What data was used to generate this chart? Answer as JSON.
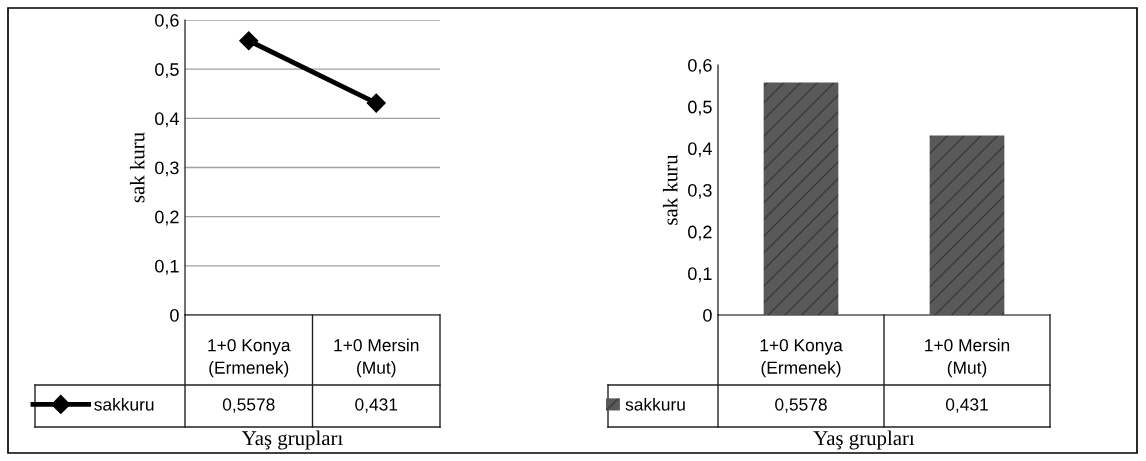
{
  "chart_data": [
    {
      "type": "line",
      "ylabel": "sak kuru",
      "xlabel": "Yaş grupları",
      "categories": [
        "1+0 Konya (Ermenek)",
        "1+0 Mersin (Mut)"
      ],
      "series": [
        {
          "name": "sakkuru",
          "color": "#000000",
          "values": [
            0.5578,
            0.431
          ],
          "value_labels": [
            "0,5578",
            "0,431"
          ]
        }
      ],
      "ylim": [
        0,
        0.6
      ],
      "yticks": [
        0,
        {
          "value": 0.1,
          "label": "0,1"
        },
        {
          "value": 0.2,
          "label": "0,2"
        },
        {
          "value": 0.3,
          "label": "0,3"
        },
        {
          "value": 0.4,
          "label": "0,4"
        },
        {
          "value": 0.5,
          "label": "0,5"
        },
        {
          "value": 0.6,
          "label": "0,6"
        }
      ],
      "grid": "y",
      "marker": "diamond",
      "line_style": "solid",
      "legend": "bottom left"
    },
    {
      "type": "bar",
      "ylabel": "sak kuru",
      "xlabel": "Yaş grupları",
      "categories": [
        "1+0 Konya (Ermenek)",
        "1+0 Mersin (Mut)"
      ],
      "series": [
        {
          "name": "sakkuru",
          "color": "#595959",
          "values": [
            0.5578,
            0.431
          ],
          "value_labels": [
            "0,5578",
            "0,431"
          ]
        }
      ],
      "ylim": [
        0,
        0.6
      ],
      "yticks": [
        0,
        {
          "value": 0.1,
          "label": "0,1"
        },
        {
          "value": 0.2,
          "label": "0,2"
        },
        {
          "value": 0.3,
          "label": "0,3"
        },
        {
          "value": 0.4,
          "label": "0,4"
        },
        {
          "value": 0.5,
          "label": "0,5"
        },
        {
          "value": 0.6,
          "label": "0,6"
        }
      ],
      "grid": false,
      "legend": "bottom left"
    }
  ]
}
